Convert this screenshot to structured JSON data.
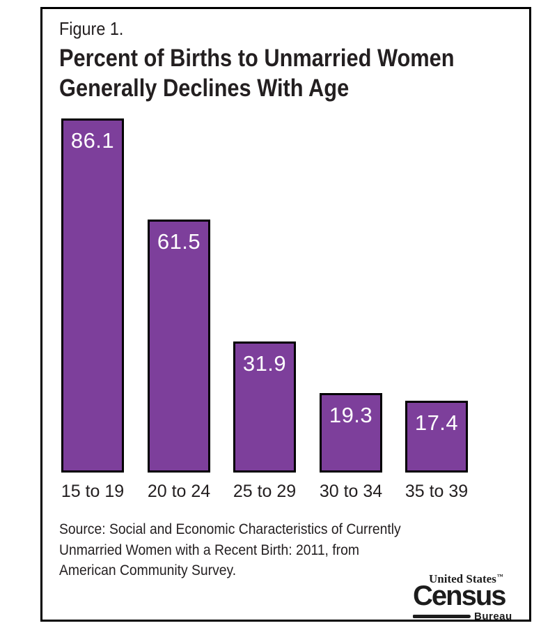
{
  "figure": {
    "label": "Figure 1.",
    "title_line1": "Percent of Births to Unmarried Women",
    "title_line2": "Generally Declines With Age"
  },
  "chart_data": {
    "type": "bar",
    "title": "Percent of Births to Unmarried Women Generally Declines With Age",
    "categories": [
      "15 to 19",
      "20 to 24",
      "25 to 29",
      "30 to 34",
      "35 to 39"
    ],
    "values": [
      86.1,
      61.5,
      31.9,
      19.3,
      17.4
    ],
    "xlabel": "",
    "ylabel": "",
    "ylim": [
      0,
      90
    ],
    "grid": false,
    "legend": false,
    "value_labels_shown": true,
    "bar_color": "#7d3f9b",
    "bar_border_color": "#000000",
    "value_label_color": "#ffffff"
  },
  "source": {
    "lines": [
      "Source: Social and Economic Characteristics of Currently",
      "Unmarried Women with a Recent Birth: 2011, from",
      "American Community Survey."
    ]
  },
  "logo": {
    "top_text": "United States",
    "trademark": "™",
    "main_text": "Census",
    "bottom_text": "Bureau"
  }
}
